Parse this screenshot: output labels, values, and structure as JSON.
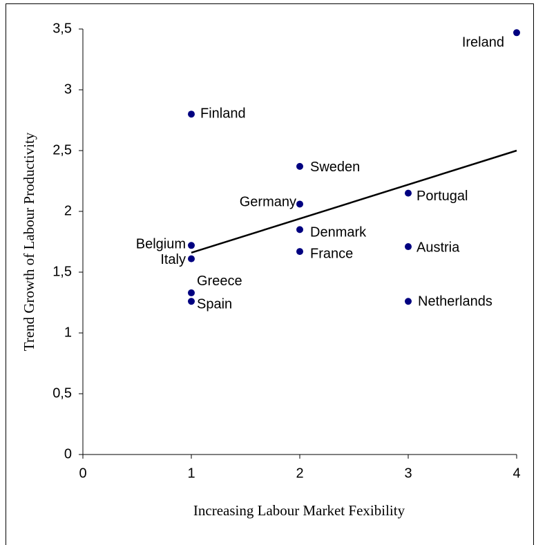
{
  "chart_data": {
    "type": "scatter",
    "x_label": "Increasing Labour Market Fexibility",
    "y_label": "Trend Growth of Labour Productivity",
    "xlim": [
      0,
      4
    ],
    "xticks": [
      0,
      1,
      2,
      3,
      4
    ],
    "ylim": [
      0,
      3.5
    ],
    "yticks": [
      0,
      {
        "value": 0.5,
        "label": "0,5"
      },
      1,
      {
        "value": 1.5,
        "label": "1,5"
      },
      2,
      {
        "value": 2.5,
        "label": "2,5"
      },
      3,
      {
        "value": 3.5,
        "label": "3,5"
      }
    ],
    "color": "#000080",
    "points": [
      {
        "label": "Ireland",
        "x": 4,
        "y": 3.47
      },
      {
        "label": "Finland",
        "x": 1,
        "y": 2.8
      },
      {
        "label": "Sweden",
        "x": 2,
        "y": 2.37
      },
      {
        "label": "Germany",
        "x": 2,
        "y": 2.06
      },
      {
        "label": "Portugal",
        "x": 3,
        "y": 2.15
      },
      {
        "label": "Denmark",
        "x": 2,
        "y": 1.85
      },
      {
        "label": "Belgium",
        "x": 1,
        "y": 1.72
      },
      {
        "label": "Italy",
        "x": 1,
        "y": 1.61
      },
      {
        "label": "France",
        "x": 2,
        "y": 1.67
      },
      {
        "label": "Austria",
        "x": 3,
        "y": 1.71
      },
      {
        "label": "Greece",
        "x": 1,
        "y": 1.33
      },
      {
        "label": "Spain",
        "x": 1,
        "y": 1.26
      },
      {
        "label": "Netherlands",
        "x": 3,
        "y": 1.26
      }
    ],
    "trendline": {
      "x": [
        1,
        4
      ],
      "y": [
        1.66,
        2.5
      ],
      "color": "#000000"
    }
  }
}
